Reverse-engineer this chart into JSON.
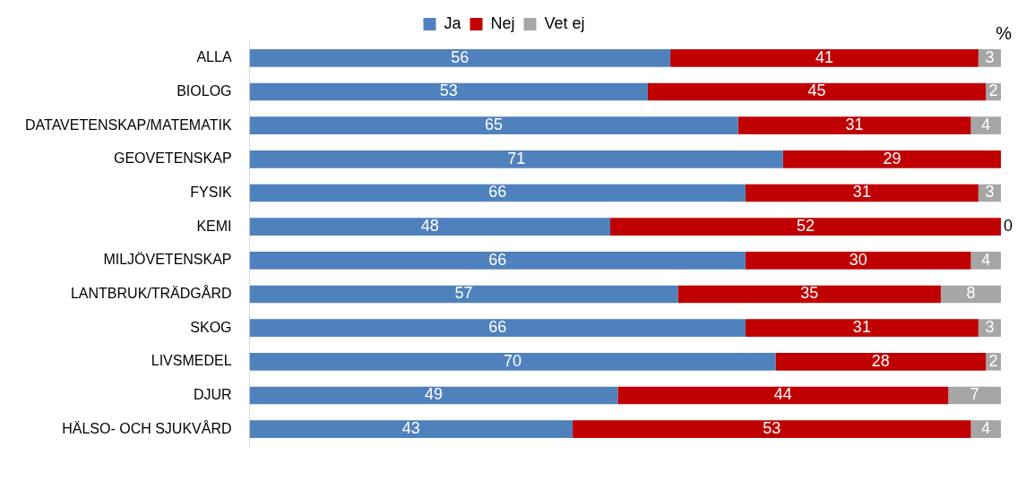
{
  "chart_data": {
    "type": "bar",
    "orientation": "horizontal",
    "stacked": true,
    "xlabel": "%",
    "categories": [
      "ALLA",
      "BIOLOG",
      "DATAVETENSKAP/MATEMATIK",
      "GEOVETENSKAP",
      "FYSIK",
      "KEMI",
      "MILJÖVETENSKAP",
      "LANTBRUK/TRÄDGÅRD",
      "SKOG",
      "LIVSMEDEL",
      "DJUR",
      "HÄLSO- OCH SJUKVÅRD"
    ],
    "series": [
      {
        "name": "Ja",
        "color": "#4f81bd",
        "values": [
          56,
          53,
          65,
          71,
          66,
          48,
          66,
          57,
          66,
          70,
          49,
          43
        ]
      },
      {
        "name": "Nej",
        "color": "#c00000",
        "values": [
          41,
          45,
          31,
          29,
          31,
          52,
          30,
          35,
          31,
          28,
          44,
          53
        ]
      },
      {
        "name": "Vet ej",
        "color": "#a6a6a6",
        "values": [
          3,
          2,
          4,
          null,
          3,
          0,
          4,
          8,
          3,
          2,
          7,
          4
        ]
      }
    ],
    "xlim": [
      0,
      100
    ],
    "tick_labels": "y",
    "grid": false,
    "legend": "top",
    "data_labels": true
  }
}
